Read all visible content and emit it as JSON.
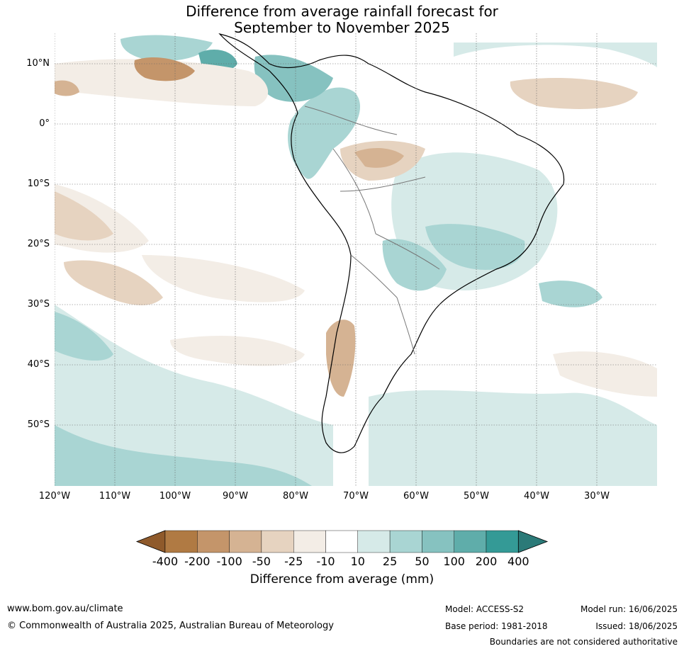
{
  "title": {
    "line1": "Difference from average rainfall forecast for",
    "line2": "September to November 2025"
  },
  "map": {
    "lat_labels": [
      "10°N",
      "0°",
      "10°S",
      "20°S",
      "30°S",
      "40°S",
      "50°S"
    ],
    "lon_labels": [
      "120°W",
      "110°W",
      "100°W",
      "90°W",
      "80°W",
      "70°W",
      "60°W",
      "50°W",
      "40°W",
      "30°W"
    ],
    "gridlines": "dotted",
    "region": "South America and surrounding oceans"
  },
  "colorbar": {
    "label": "Difference from average (mm)",
    "ticks": [
      "-400",
      "-200",
      "-100",
      "-50",
      "-25",
      "-10",
      "10",
      "25",
      "50",
      "100",
      "200",
      "400"
    ],
    "colors": [
      "#8f5a2b",
      "#b07a43",
      "#c4956a",
      "#d5b393",
      "#e6d3c0",
      "#f3ede6",
      "#ffffff",
      "#d6eae8",
      "#a9d5d3",
      "#86c2c0",
      "#5fadaa",
      "#349a96",
      "#2b7a78"
    ],
    "extend": "both"
  },
  "footer": {
    "url": "www.bom.gov.au/climate",
    "copyright": "© Commonwealth of Australia 2025, Australian Bureau of Meteorology",
    "model": "Model: ACCESS-S2",
    "base_period": "Base period: 1981-2018",
    "model_run": "Model run: 16/06/2025",
    "issued": "Issued: 18/06/2025",
    "disclaimer": "Boundaries are not considered authoritative"
  }
}
